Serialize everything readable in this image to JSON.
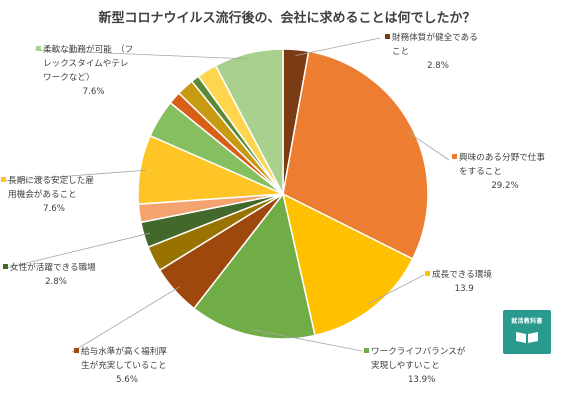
{
  "chart_data": {
    "type": "pie",
    "title": "新型コロナウイルス流行後の、会社に求めることは何でしたか？",
    "unit": "%",
    "slices": [
      {
        "name": "財務体質が健全であること",
        "value": 2.8,
        "color": "#7b3b14",
        "label_lines": [
          "財務体質が健全である",
          "こと"
        ],
        "value_text": "2.8%"
      },
      {
        "name": "興味のある分野で仕事をすること",
        "value": 29.2,
        "color": "#ed7d31",
        "label_lines": [
          "興味のある分野で仕事",
          "をすること"
        ],
        "value_text": "29.2%"
      },
      {
        "name": "成長できる環境",
        "value": 13.9,
        "color": "#ffc000",
        "label_lines": [
          "成長できる環境"
        ],
        "value_text": "13.9"
      },
      {
        "name": "ワークライフバランスが実現しやすいこと",
        "value": 13.9,
        "color": "#70ad47",
        "label_lines": [
          "ワークライフバランスが",
          "実現しやすいこと"
        ],
        "value_text": "13.9%"
      },
      {
        "name": "給与水準が高く福利厚生が充実していること",
        "value": 5.6,
        "color": "#9e480e",
        "label_lines": [
          "給与水準が高く福利厚",
          "生が充実していること"
        ],
        "value_text": "5.6%"
      },
      {
        "name": "その他1",
        "value": 2.8,
        "color": "#997300",
        "unlabeled": true
      },
      {
        "name": "女性が活躍できる職場",
        "value": 2.8,
        "color": "#43682b",
        "label_lines": [
          "女性が活躍できる職場"
        ],
        "value_text": "2.8%"
      },
      {
        "name": "その他2",
        "value": 2.0,
        "color": "#f4a26e",
        "unlabeled": true
      },
      {
        "name": "長期に渡る安定した雇用機会があること",
        "value": 7.6,
        "color": "#ffc425",
        "label_lines": [
          "長期に渡る安定した雇",
          "用機会があること"
        ],
        "value_text": "7.6%"
      },
      {
        "name": "その他3",
        "value": 4.2,
        "color": "#86bf60",
        "unlabeled": true
      },
      {
        "name": "その他4",
        "value": 1.4,
        "color": "#d85f16",
        "unlabeled": true
      },
      {
        "name": "その他5",
        "value": 1.9,
        "color": "#c89a12",
        "unlabeled": true
      },
      {
        "name": "その他6",
        "value": 0.9,
        "color": "#5a8a38",
        "unlabeled": true
      },
      {
        "name": "その他7",
        "value": 2.2,
        "color": "#ffd54f",
        "unlabeled": true
      },
      {
        "name": "柔軟な勤務が可能（フレックスタイムやテレワークなど）",
        "value": 7.6,
        "color": "#a9d18e",
        "label_lines": [
          "柔軟な勤務が可能　（フ",
          "レックスタイムやテレ",
          "ワークなど）"
        ],
        "value_text": "7.6%"
      }
    ]
  },
  "logo": {
    "text": "就活教科書"
  }
}
